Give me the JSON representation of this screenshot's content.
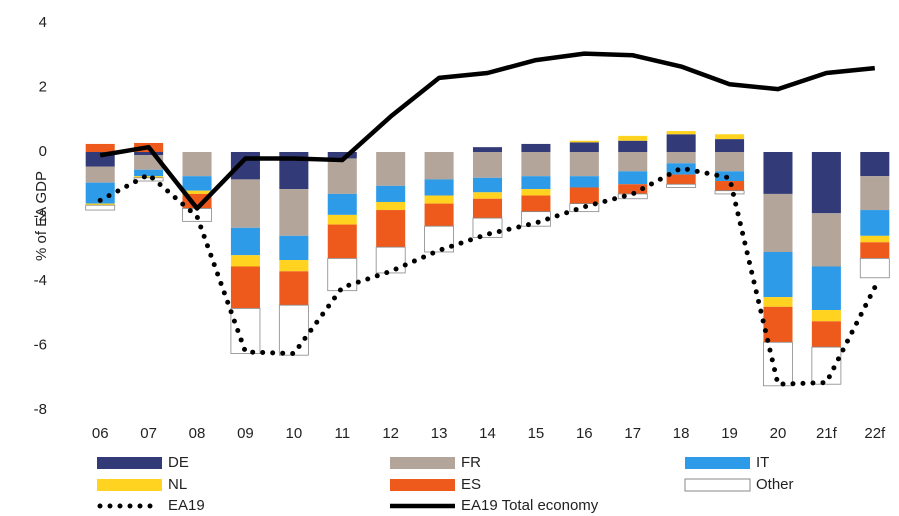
{
  "chart_data": {
    "type": "bar",
    "stacked": true,
    "y_label": "% of EA GDP",
    "categories": [
      "06",
      "07",
      "08",
      "09",
      "10",
      "11",
      "12",
      "13",
      "14",
      "15",
      "16",
      "17",
      "18",
      "19",
      "20",
      "21f",
      "22f"
    ],
    "ylim": [
      -8,
      4
    ],
    "yticks": [
      -8,
      -6,
      -4,
      -2,
      0,
      2,
      4
    ],
    "grid": false,
    "series": [
      {
        "name": "DE",
        "color": "#333a78",
        "values": [
          -0.45,
          -0.1,
          0,
          -0.85,
          -1.15,
          -0.2,
          0,
          0,
          0.15,
          0.25,
          0.3,
          0.35,
          0.55,
          0.4,
          -1.3,
          -1.9,
          -0.75
        ]
      },
      {
        "name": "FR",
        "color": "#b3a59a",
        "values": [
          -0.5,
          -0.45,
          -0.75,
          -1.5,
          -1.45,
          -1.1,
          -1.05,
          -0.85,
          -0.8,
          -0.75,
          -0.75,
          -0.6,
          -0.35,
          -0.6,
          -1.8,
          -1.65,
          -1.05
        ]
      },
      {
        "name": "IT",
        "color": "#2e9be8",
        "values": [
          -0.65,
          -0.2,
          -0.45,
          -0.85,
          -0.75,
          -0.65,
          -0.5,
          -0.5,
          -0.45,
          -0.4,
          -0.35,
          -0.4,
          -0.35,
          -0.3,
          -1.4,
          -1.35,
          -0.8
        ]
      },
      {
        "name": "NL",
        "color": "#ffd31f",
        "values": [
          -0.05,
          -0.05,
          -0.1,
          -0.35,
          -0.35,
          -0.3,
          -0.25,
          -0.25,
          -0.2,
          -0.2,
          0.05,
          0.15,
          0.1,
          0.15,
          -0.3,
          -0.35,
          -0.2
        ]
      },
      {
        "name": "ES",
        "color": "#ee5a1b",
        "values": [
          0.25,
          0.28,
          -0.45,
          -1.3,
          -1.05,
          -1.05,
          -1.15,
          -0.7,
          -0.6,
          -0.5,
          -0.5,
          -0.3,
          -0.3,
          -0.3,
          -1.1,
          -0.8,
          -0.5
        ]
      },
      {
        "name": "Other",
        "color": "#ffffff",
        "values": [
          -0.15,
          -0.1,
          -0.4,
          -1.4,
          -1.55,
          -1.0,
          -0.8,
          -0.8,
          -0.6,
          -0.45,
          -0.25,
          -0.15,
          -0.1,
          -0.1,
          -1.35,
          -1.15,
          -0.6
        ]
      }
    ],
    "lines": [
      {
        "name": "EA19",
        "color": "#000000",
        "style": "dotted",
        "values": [
          -1.5,
          -0.7,
          -2.0,
          -6.2,
          -6.25,
          -4.2,
          -3.7,
          -3.05,
          -2.55,
          -2.2,
          -1.7,
          -1.3,
          -0.5,
          -0.8,
          -7.2,
          -7.15,
          -4.2
        ]
      },
      {
        "name": "EA19 Total economy",
        "color": "#000000",
        "style": "solid",
        "values": [
          -0.1,
          0.15,
          -1.75,
          -0.2,
          -0.2,
          -0.25,
          1.1,
          2.3,
          2.45,
          2.85,
          3.05,
          3.0,
          2.65,
          2.1,
          1.95,
          2.45,
          2.6
        ]
      }
    ]
  }
}
